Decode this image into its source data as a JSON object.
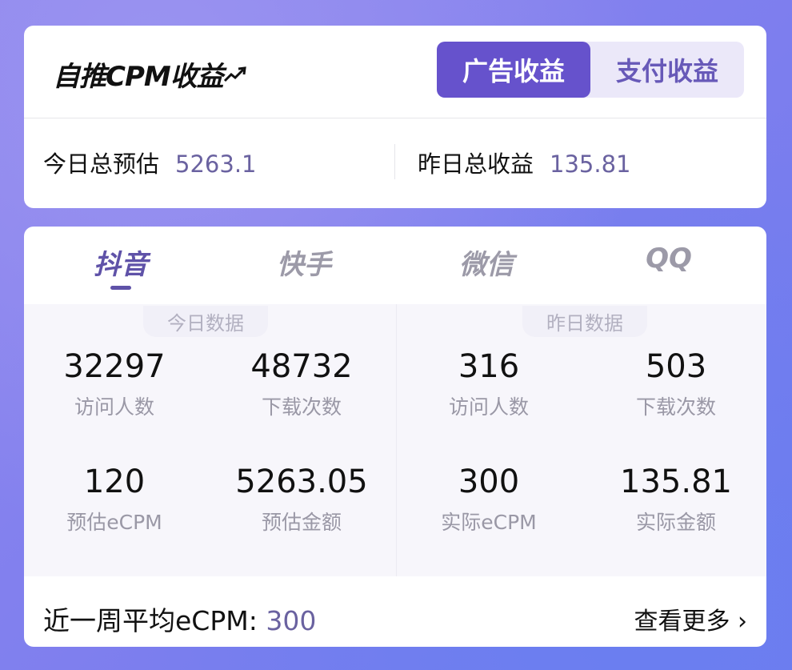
{
  "header": {
    "title": "自推CPM收益",
    "trend_icon": "trend-up-arrow-icon",
    "segments": [
      {
        "label": "广告收益",
        "active": true
      },
      {
        "label": "支付收益",
        "active": false
      }
    ]
  },
  "summary": {
    "today_label": "今日总预估",
    "today_value": "5263.1",
    "yesterday_label": "昨日总收益",
    "yesterday_value": "135.81"
  },
  "tabs": [
    {
      "label": "抖音",
      "active": true
    },
    {
      "label": "快手"
    },
    {
      "label": "微信"
    },
    {
      "label": "QQ"
    }
  ],
  "today": {
    "title": "今日数据",
    "stats": [
      {
        "value": "32297",
        "label": "访问人数"
      },
      {
        "value": "48732",
        "label": "下载次数"
      },
      {
        "value": "120",
        "label": "预估eCPM"
      },
      {
        "value": "5263.05",
        "label": "预估金额"
      }
    ]
  },
  "yesterday": {
    "title": "昨日数据",
    "stats": [
      {
        "value": "316",
        "label": "访问人数"
      },
      {
        "value": "503",
        "label": "下载次数"
      },
      {
        "value": "300",
        "label": "实际eCPM"
      },
      {
        "value": "135.81",
        "label": "实际金额"
      }
    ]
  },
  "footer": {
    "avg_label": "近一周平均eCPM: ",
    "avg_value": "300",
    "more_label": "查看更多",
    "more_icon": "chevron-right-icon"
  },
  "colors": {
    "accent": "#6652cc",
    "value_text": "#6a62a0"
  }
}
